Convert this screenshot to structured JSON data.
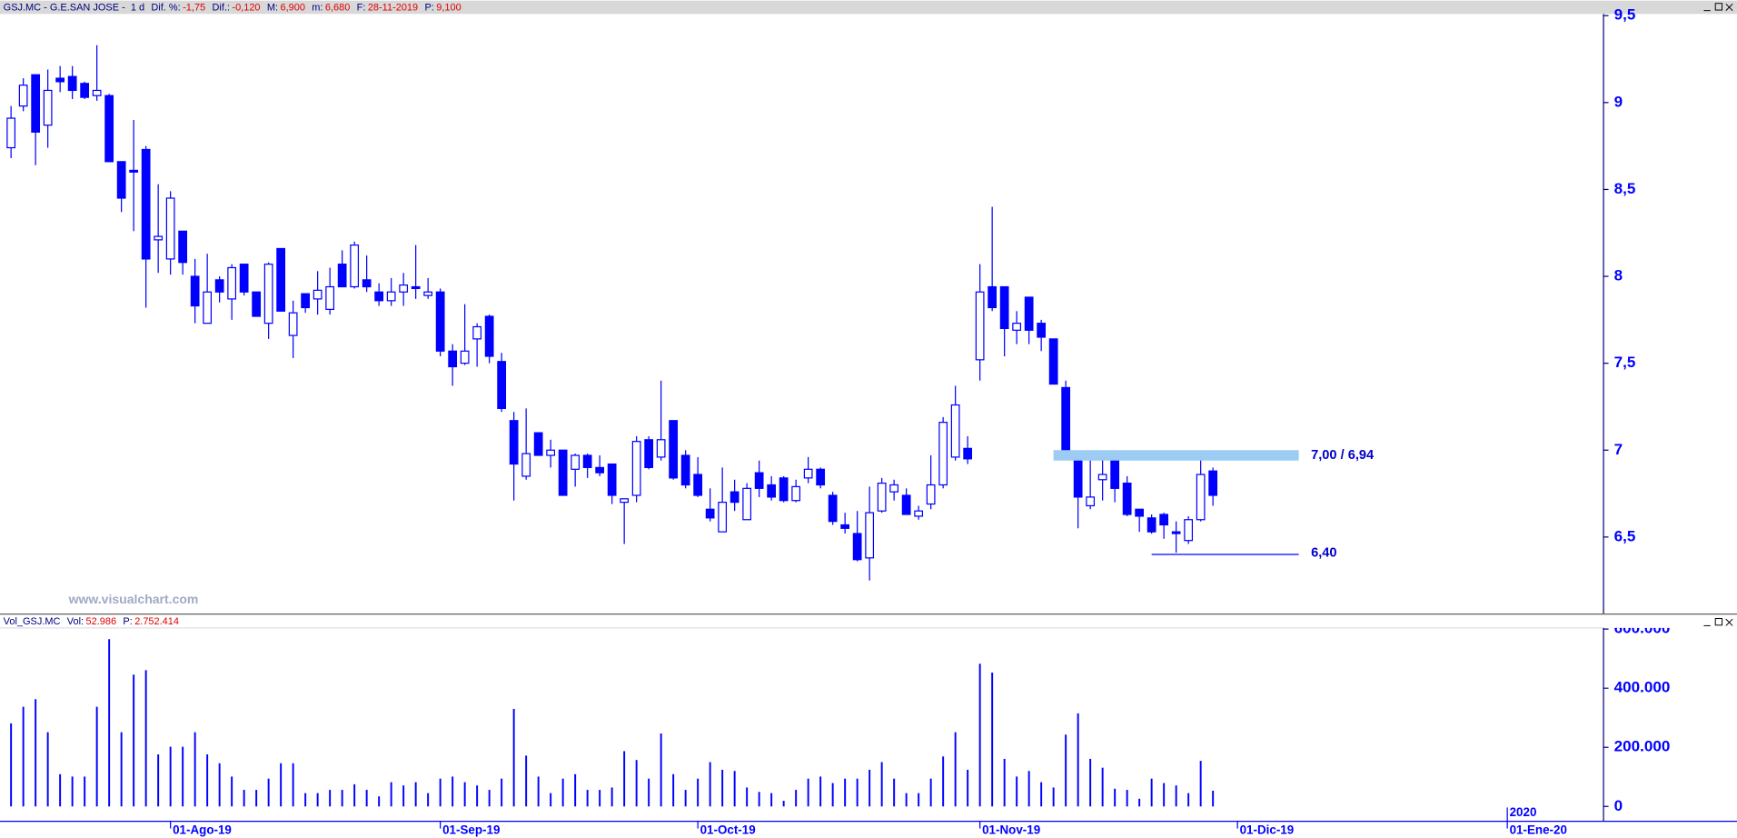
{
  "header": {
    "title": "GSJ.MC - G.E.SAN JOSE -",
    "period": "1 d",
    "fields": [
      {
        "label": "Dif. %:",
        "value": "-1,75"
      },
      {
        "label": "Dif.:",
        "value": "-0,120"
      },
      {
        "label": "M:",
        "value": "6,900"
      },
      {
        "label": "m:",
        "value": "6,680"
      },
      {
        "label": "F:",
        "value": "28-11-2019"
      },
      {
        "label": "P:",
        "value": "9,100"
      }
    ]
  },
  "volume_header": {
    "title": "Vol_GSJ.MC",
    "fields": [
      {
        "label": "Vol:",
        "value": "52.986"
      },
      {
        "label": "P:",
        "value": "2.752.414"
      }
    ]
  },
  "watermark": "www.visualchart.com",
  "chart_data": [
    {
      "type": "candlestick",
      "up_color": "#ffffff",
      "down_color": "#0000ff",
      "edge_color": "#0000ff",
      "open": [
        8.74,
        8.98,
        9.16,
        8.87,
        9.14,
        9.15,
        9.11,
        9.04,
        9.04,
        8.66,
        8.61,
        8.73,
        8.21,
        8.1,
        8.26,
        8.0,
        7.73,
        7.98,
        7.87,
        8.07,
        7.91,
        7.73,
        8.16,
        7.66,
        7.9,
        7.87,
        7.81,
        8.07,
        7.94,
        7.98,
        7.91,
        7.86,
        7.91,
        7.94,
        7.89,
        7.91,
        7.57,
        7.5,
        7.64,
        7.77,
        7.51,
        7.17,
        6.85,
        7.1,
        6.97,
        7.0,
        6.89,
        6.97,
        6.9,
        6.92,
        6.7,
        6.74,
        7.06,
        6.96,
        7.17,
        6.97,
        6.86,
        6.66,
        6.53,
        6.76,
        6.6,
        6.87,
        6.8,
        6.84,
        6.71,
        6.84,
        6.89,
        6.74,
        6.57,
        6.52,
        6.38,
        6.65,
        6.76,
        6.74,
        6.62,
        6.69,
        6.8,
        6.96,
        7.01,
        7.52,
        7.94,
        7.94,
        7.69,
        7.88,
        7.73,
        7.64,
        7.36,
        6.97,
        6.68,
        6.83,
        6.98,
        6.81,
        6.66,
        6.61,
        6.63,
        6.53,
        6.48,
        6.6,
        6.88
      ],
      "high": [
        8.98,
        9.14,
        9.16,
        9.19,
        9.21,
        9.21,
        9.12,
        9.33,
        9.05,
        8.66,
        8.9,
        8.75,
        8.53,
        8.49,
        8.26,
        8.1,
        8.13,
        8.0,
        8.07,
        8.07,
        7.91,
        8.08,
        8.16,
        7.86,
        7.9,
        8.03,
        8.05,
        8.15,
        8.2,
        8.12,
        7.96,
        7.99,
        8.02,
        8.18,
        7.99,
        7.93,
        7.61,
        7.84,
        7.73,
        7.78,
        7.56,
        7.22,
        7.24,
        7.1,
        7.06,
        7.0,
        6.98,
        6.98,
        6.97,
        6.92,
        6.72,
        7.08,
        7.08,
        7.4,
        7.17,
        7.0,
        6.96,
        6.78,
        6.9,
        6.83,
        6.81,
        6.94,
        6.85,
        6.85,
        6.83,
        6.96,
        6.9,
        6.76,
        6.64,
        6.65,
        6.79,
        6.84,
        6.83,
        6.78,
        6.68,
        6.97,
        7.19,
        7.37,
        7.08,
        8.07,
        8.4,
        7.94,
        7.8,
        7.88,
        7.75,
        7.64,
        7.4,
        6.98,
        6.97,
        6.98,
        6.98,
        6.85,
        6.66,
        6.63,
        6.64,
        6.59,
        6.62,
        6.97,
        6.9
      ],
      "low": [
        8.68,
        8.95,
        8.64,
        8.74,
        9.06,
        9.02,
        9.02,
        9.01,
        8.66,
        8.37,
        8.26,
        7.82,
        8.02,
        8.01,
        8.01,
        7.73,
        7.73,
        7.85,
        7.75,
        7.89,
        7.77,
        7.64,
        7.8,
        7.53,
        7.79,
        7.78,
        7.78,
        7.94,
        7.93,
        7.91,
        7.83,
        7.83,
        7.83,
        7.87,
        7.87,
        7.54,
        7.37,
        7.49,
        7.48,
        7.5,
        7.22,
        6.71,
        6.83,
        6.97,
        6.9,
        6.74,
        6.79,
        6.84,
        6.85,
        6.69,
        6.46,
        6.7,
        6.89,
        6.94,
        6.83,
        6.78,
        6.73,
        6.59,
        6.53,
        6.65,
        6.6,
        6.73,
        6.71,
        6.7,
        6.7,
        6.81,
        6.78,
        6.57,
        6.52,
        6.36,
        6.25,
        6.64,
        6.71,
        6.63,
        6.6,
        6.66,
        6.78,
        6.94,
        6.92,
        7.4,
        7.8,
        7.54,
        7.61,
        7.61,
        7.57,
        7.38,
        6.97,
        6.55,
        6.66,
        6.71,
        6.7,
        6.62,
        6.53,
        6.52,
        6.49,
        6.41,
        6.46,
        6.59,
        6.68
      ],
      "close": [
        8.91,
        9.1,
        8.83,
        9.07,
        9.12,
        9.07,
        9.03,
        9.07,
        8.66,
        8.45,
        8.6,
        8.1,
        8.23,
        8.45,
        8.08,
        7.83,
        7.91,
        7.91,
        8.05,
        7.91,
        7.77,
        8.07,
        7.8,
        7.79,
        7.82,
        7.92,
        7.94,
        7.94,
        8.18,
        7.94,
        7.86,
        7.91,
        7.95,
        7.93,
        7.91,
        7.57,
        7.48,
        7.57,
        7.71,
        7.54,
        7.24,
        6.92,
        6.98,
        6.97,
        7.0,
        6.74,
        6.97,
        6.9,
        6.87,
        6.74,
        6.72,
        7.05,
        6.9,
        7.06,
        6.84,
        6.8,
        6.74,
        6.61,
        6.7,
        6.7,
        6.78,
        6.78,
        6.73,
        6.71,
        6.79,
        6.89,
        6.8,
        6.59,
        6.55,
        6.37,
        6.64,
        6.81,
        6.8,
        6.63,
        6.65,
        6.8,
        7.16,
        7.26,
        6.95,
        7.91,
        7.82,
        7.7,
        7.73,
        7.69,
        7.65,
        7.38,
        6.98,
        6.73,
        6.73,
        6.86,
        6.78,
        6.63,
        6.62,
        6.53,
        6.57,
        6.52,
        6.6,
        6.86,
        6.74
      ],
      "ylim": [
        6.06,
        9.51
      ],
      "yticks": [
        {
          "value": 6.5,
          "label": "6,5"
        },
        7,
        {
          "value": 7.5,
          "label": "7,5"
        },
        8,
        {
          "value": 8.5,
          "label": "8,5"
        },
        9,
        {
          "value": 9.5,
          "label": "9,5"
        }
      ],
      "annotations": [
        {
          "type": "zone",
          "y": [
            7.0,
            6.94
          ],
          "x": [
            85,
            105
          ],
          "label": "7,00 / 6,94",
          "color": "#9ccbf3"
        },
        {
          "type": "hline",
          "y": 6.4,
          "x": [
            93,
            105
          ],
          "label": "6,40",
          "color": "#0000ff"
        }
      ]
    },
    {
      "type": "bar",
      "color": "#0000ff",
      "values": [
        281000,
        337000,
        363000,
        251000,
        109000,
        101000,
        101000,
        337000,
        566000,
        251000,
        446000,
        461000,
        176000,
        202000,
        202000,
        251000,
        176000,
        146000,
        101000,
        56000,
        56000,
        94000,
        146000,
        146000,
        45000,
        45000,
        56000,
        56000,
        75000,
        56000,
        34000,
        82000,
        71000,
        82000,
        45000,
        94000,
        101000,
        82000,
        71000,
        56000,
        94000,
        330000,
        172000,
        101000,
        45000,
        94000,
        109000,
        56000,
        56000,
        64000,
        187000,
        157000,
        94000,
        247000,
        109000,
        56000,
        94000,
        150000,
        124000,
        120000,
        64000,
        49000,
        45000,
        19000,
        56000,
        94000,
        101000,
        79000,
        94000,
        94000,
        124000,
        150000,
        94000,
        45000,
        45000,
        94000,
        169000,
        251000,
        124000,
        483000,
        453000,
        161000,
        101000,
        120000,
        82000,
        64000,
        243000,
        315000,
        161000,
        131000,
        60000,
        56000,
        26000,
        94000,
        79000,
        71000,
        45000,
        154000,
        52986
      ],
      "ylim": [
        -41000,
        604000
      ],
      "yticks": [
        0,
        {
          "value": 200000,
          "label": "200.000"
        },
        {
          "value": 400000,
          "label": "400.000"
        },
        {
          "value": 600000,
          "label": "600.000"
        }
      ],
      "xlim": [
        -0.9,
        129.8
      ],
      "xticks": [
        {
          "value": 13,
          "label": "01-Ago-19"
        },
        {
          "value": 35,
          "label": "01-Sep-19"
        },
        {
          "value": 56,
          "label": "01-Oct-19"
        },
        {
          "value": 79,
          "label": "01-Nov-19"
        },
        {
          "value": 100,
          "label": "01-Dic-19"
        },
        {
          "value": 122,
          "label": "01-Ene-20"
        }
      ],
      "year_ticks": [
        {
          "value": 122,
          "label": "2020"
        }
      ]
    }
  ]
}
